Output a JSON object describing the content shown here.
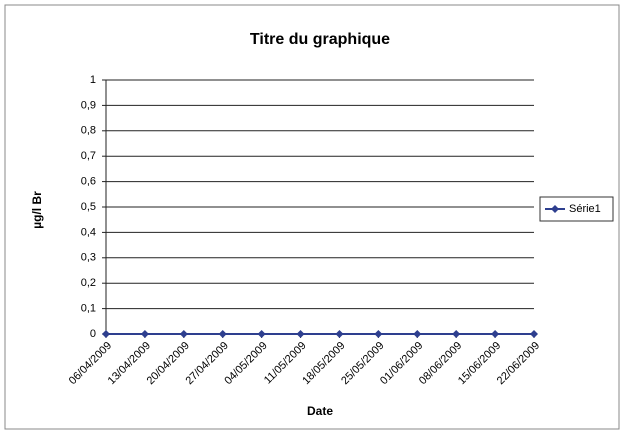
{
  "chart_data": {
    "type": "line",
    "title": "Titre du graphique",
    "xlabel": "Date",
    "ylabel": "µg/l Br",
    "categories": [
      "06/04/2009",
      "13/04/2009",
      "20/04/2009",
      "27/04/2009",
      "04/05/2009",
      "11/05/2009",
      "18/05/2009",
      "25/05/2009",
      "01/06/2009",
      "08/06/2009",
      "15/06/2009",
      "22/06/2009"
    ],
    "series": [
      {
        "name": "Série1",
        "color": "#2e3f8f",
        "values": [
          0,
          0,
          0,
          0,
          0,
          0,
          0,
          0,
          0,
          0,
          0,
          0
        ]
      }
    ],
    "ylim": [
      0,
      1
    ],
    "yticks": [
      0,
      {
        "value": 0.1,
        "label": "0,1"
      },
      {
        "value": 0.2,
        "label": "0,2"
      },
      {
        "value": 0.3,
        "label": "0,3"
      },
      {
        "value": 0.4,
        "label": "0,4"
      },
      {
        "value": 0.5,
        "label": "0,5"
      },
      {
        "value": 0.6,
        "label": "0,6"
      },
      {
        "value": 0.7,
        "label": "0,7"
      },
      {
        "value": 0.8,
        "label": "0,8"
      },
      {
        "value": 0.9,
        "label": "0,9"
      },
      1
    ],
    "grid": true,
    "legend": "right"
  }
}
